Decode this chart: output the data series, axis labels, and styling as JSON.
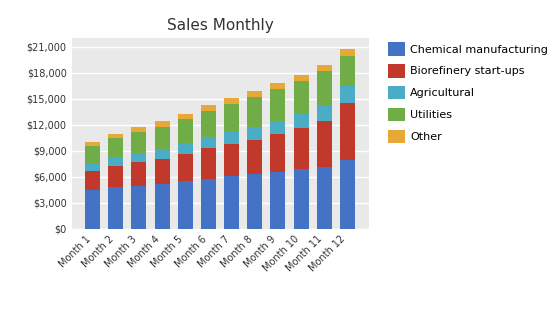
{
  "title": "Sales Monthly",
  "categories": [
    "Month 1",
    "Month 2",
    "Month 3",
    "Month 4",
    "Month 5",
    "Month 6",
    "Month 7",
    "Month 8",
    "Month 9",
    "Month 10",
    "Month 11",
    "Month 12"
  ],
  "series": {
    "Chemical manufacturing": [
      4500,
      4800,
      5000,
      5200,
      5500,
      5800,
      6100,
      6300,
      6600,
      6900,
      7200,
      8000
    ],
    "Biorefinery start-ups": [
      2200,
      2500,
      2700,
      2900,
      3200,
      3500,
      3700,
      4000,
      4300,
      4700,
      5200,
      6500
    ],
    "Agricultural": [
      900,
      1000,
      1100,
      1100,
      1200,
      1300,
      1400,
      1500,
      1600,
      1700,
      1800,
      2000
    ],
    "Utilities": [
      2000,
      2200,
      2400,
      2600,
      2800,
      3000,
      3200,
      3400,
      3600,
      3800,
      4000,
      3500
    ],
    "Other": [
      400,
      500,
      600,
      600,
      600,
      700,
      700,
      700,
      700,
      700,
      700,
      700
    ]
  },
  "colors": {
    "Chemical manufacturing": "#4472C4",
    "Biorefinery start-ups": "#C0392B",
    "Agricultural": "#4BACC6",
    "Utilities": "#70AD47",
    "Other": "#E8A838"
  },
  "ylim": [
    0,
    22000
  ],
  "yticks": [
    0,
    3000,
    6000,
    9000,
    12000,
    15000,
    18000,
    21000
  ],
  "plot_bg": "#E9E9E9",
  "fig_bg": "#FFFFFF",
  "grid_color": "#FFFFFF",
  "title_fontsize": 11,
  "tick_fontsize": 7,
  "legend_fontsize": 8,
  "figsize": [
    5.5,
    3.18
  ],
  "dpi": 100
}
